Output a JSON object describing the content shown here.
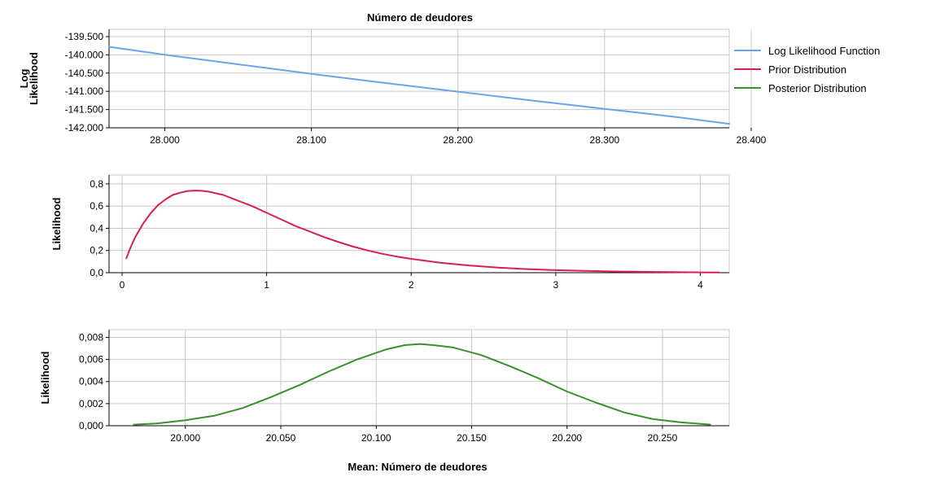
{
  "figure": {
    "title": "Número de deudores",
    "xlabel": "Mean: Número de deudores"
  },
  "legend": {
    "position": "right",
    "items": [
      {
        "label": "Log Likelihood Function",
        "color": "#6aa5e8"
      },
      {
        "label": "Prior Distribution",
        "color": "#d8204e"
      },
      {
        "label": "Posterior Distribution",
        "color": "#3c8f30"
      }
    ]
  },
  "chart_data": [
    {
      "type": "line",
      "ylabel_lines": [
        "Log",
        "Likelihood"
      ],
      "xlim": [
        27.962,
        28.385
      ],
      "ylim": [
        -142.0,
        -139.3
      ],
      "xticks": [
        28.0,
        28.1,
        28.2,
        28.3,
        28.4
      ],
      "xtick_labels": [
        "28.000",
        "28.100",
        "28.200",
        "28.300",
        "28.400"
      ],
      "yticks": [
        -142.0,
        -141.5,
        -141.0,
        -140.5,
        -140.0,
        -139.5
      ],
      "ytick_labels": [
        "-142.000",
        "-141.500",
        "-141.000",
        "-140.500",
        "-140.000",
        "-139.500"
      ],
      "grid": true,
      "series": [
        {
          "name": "Log Likelihood Function",
          "color": "#6aa5e8",
          "x": [
            27.962,
            28.0,
            28.05,
            28.1,
            28.15,
            28.2,
            28.25,
            28.3,
            28.35,
            28.385
          ],
          "y": [
            -139.78,
            -139.999,
            -140.26,
            -140.52,
            -140.77,
            -141.01,
            -141.25,
            -141.48,
            -141.71,
            -141.89
          ]
        }
      ]
    },
    {
      "type": "line",
      "ylabel_lines": [
        "Likelihood"
      ],
      "xlim": [
        -0.09,
        4.2
      ],
      "ylim": [
        0.0,
        0.88
      ],
      "xticks": [
        0,
        1,
        2,
        3,
        4
      ],
      "xtick_labels": [
        "0",
        "1",
        "2",
        "3",
        "4"
      ],
      "yticks": [
        0.0,
        0.2,
        0.4,
        0.6,
        0.8
      ],
      "ytick_labels": [
        "0,0",
        "0,2",
        "0,4",
        "0,6",
        "0,8"
      ],
      "grid": true,
      "series": [
        {
          "name": "Prior Distribution",
          "color": "#d8204e",
          "x": [
            0.03,
            0.05,
            0.08,
            0.1,
            0.15,
            0.2,
            0.25,
            0.3,
            0.35,
            0.4,
            0.45,
            0.5,
            0.55,
            0.6,
            0.7,
            0.8,
            0.9,
            1.0,
            1.1,
            1.2,
            1.3,
            1.4,
            1.5,
            1.6,
            1.7,
            1.8,
            1.9,
            2.0,
            2.2,
            2.4,
            2.6,
            2.8,
            3.0,
            3.2,
            3.4,
            3.6,
            3.8,
            4.0,
            4.13
          ],
          "y": [
            0.13,
            0.2,
            0.29,
            0.34,
            0.45,
            0.54,
            0.61,
            0.66,
            0.7,
            0.72,
            0.735,
            0.74,
            0.738,
            0.73,
            0.7,
            0.65,
            0.6,
            0.54,
            0.48,
            0.42,
            0.37,
            0.32,
            0.275,
            0.235,
            0.2,
            0.17,
            0.145,
            0.125,
            0.09,
            0.065,
            0.046,
            0.032,
            0.023,
            0.016,
            0.011,
            0.008,
            0.005,
            0.003,
            0.002
          ]
        }
      ]
    },
    {
      "type": "line",
      "ylabel_lines": [
        "Likelihood"
      ],
      "xlim": [
        19.96,
        20.285
      ],
      "ylim": [
        0.0,
        0.0087
      ],
      "xticks": [
        20.0,
        20.05,
        20.1,
        20.15,
        20.2,
        20.25
      ],
      "xtick_labels": [
        "20.000",
        "20.050",
        "20.100",
        "20.150",
        "20.200",
        "20.250"
      ],
      "yticks": [
        0.0,
        0.002,
        0.004,
        0.006,
        0.008
      ],
      "ytick_labels": [
        "0,000",
        "0,002",
        "0,004",
        "0,006",
        "0,008"
      ],
      "grid": true,
      "series": [
        {
          "name": "Posterior Distribution",
          "color": "#3c8f30",
          "x": [
            19.973,
            19.985,
            20.0,
            20.015,
            20.03,
            20.045,
            20.06,
            20.075,
            20.09,
            20.105,
            20.115,
            20.123,
            20.13,
            20.14,
            20.155,
            20.17,
            20.185,
            20.2,
            20.215,
            20.23,
            20.245,
            20.26,
            20.275
          ],
          "y": [
            0.0001,
            0.0002,
            0.0005,
            0.0009,
            0.0016,
            0.0026,
            0.0037,
            0.0049,
            0.006,
            0.0069,
            0.0073,
            0.0074,
            0.0073,
            0.0071,
            0.0064,
            0.0054,
            0.0043,
            0.0031,
            0.0021,
            0.0012,
            0.0006,
            0.0003,
            0.0001
          ]
        }
      ]
    }
  ]
}
